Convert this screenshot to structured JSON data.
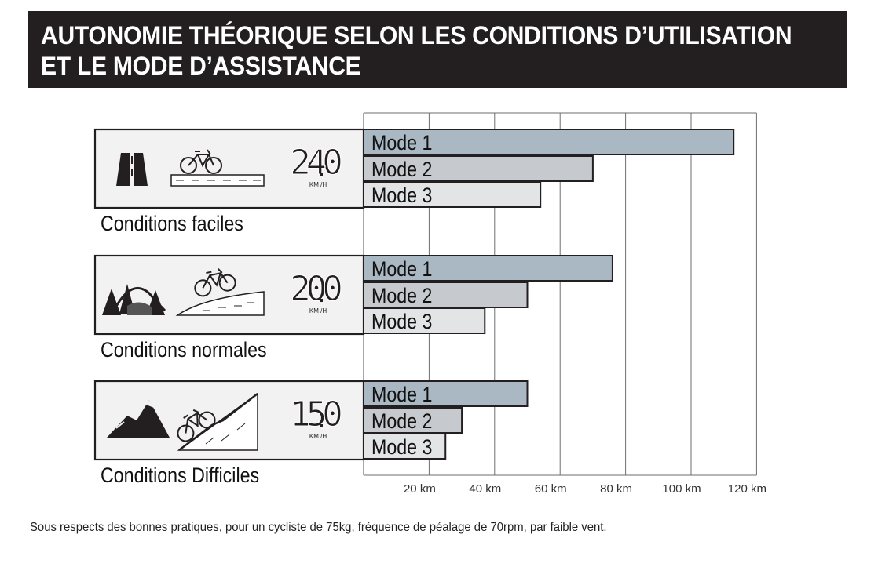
{
  "banner": {
    "line1": "AUTONOMIE THÉORIQUE SELON LES CONDITIONS D’UTILISATION",
    "line2": "ET LE MODE D’ASSISTANCE"
  },
  "footnote": "Sous respects des bonnes pratiques, pour un cycliste de 75kg, fréquence de péalage de 70rpm, par faible vent.",
  "colors": {
    "mode1": "#aab8c4",
    "mode2": "#c6c9ce",
    "mode3": "#e3e4e6",
    "banner": "#231f20"
  },
  "conditions": [
    {
      "label": "Conditions faciles",
      "speed": "24.0",
      "unit": "KM /H",
      "terrain_icon": "road-icon",
      "bike_icon": "bike-flat-icon"
    },
    {
      "label": "Conditions normales",
      "speed": "20.0",
      "unit": "KM /H",
      "terrain_icon": "hills-forest-icon",
      "bike_icon": "bike-slope-icon"
    },
    {
      "label": "Conditions Difficiles",
      "speed": "15.0",
      "unit": "KM /H",
      "terrain_icon": "mountain-icon",
      "bike_icon": "bike-climb-icon"
    }
  ],
  "chart_data": {
    "type": "bar",
    "orientation": "horizontal",
    "x_unit": "km",
    "xlim": [
      0,
      120
    ],
    "ticks": [
      "20 km",
      "40 km",
      "60 km",
      "80 km",
      "100 km",
      "120 km"
    ],
    "tick_values": [
      20,
      40,
      60,
      80,
      100,
      120
    ],
    "grid": true,
    "categories": [
      "Conditions faciles",
      "Conditions normales",
      "Conditions Difficiles"
    ],
    "series": [
      {
        "name": "Mode 1",
        "values": [
          113,
          76,
          50
        ]
      },
      {
        "name": "Mode 2",
        "values": [
          70,
          50,
          30
        ]
      },
      {
        "name": "Mode 3",
        "values": [
          54,
          37,
          25
        ]
      }
    ]
  }
}
